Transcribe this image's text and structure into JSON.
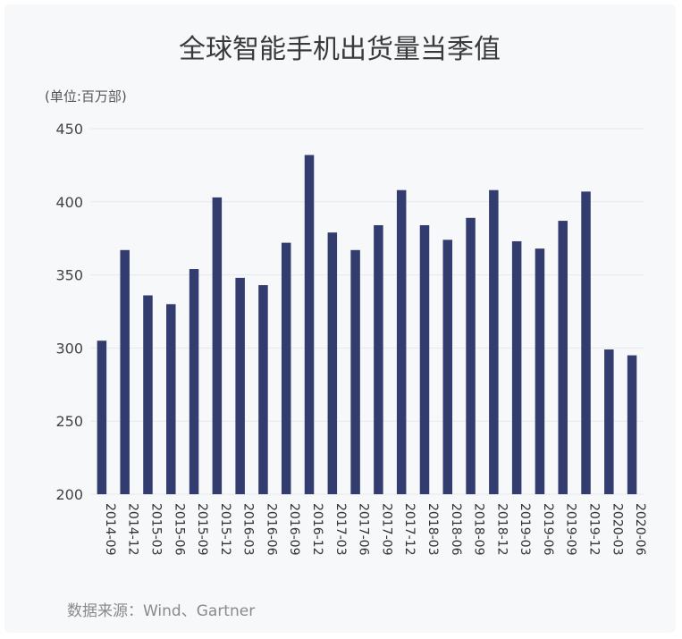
{
  "chart_data": {
    "type": "bar",
    "title": "全球智能手机出货量当季值",
    "unit": "(单位:百万部)",
    "source": "数据来源：Wind、Gartner",
    "ylim": [
      200,
      450
    ],
    "yticks": [
      "200",
      "250",
      "300",
      "350",
      "400",
      "450"
    ],
    "categories": [
      "2014-09",
      "2014-12",
      "2015-03",
      "2015-06",
      "2015-09",
      "2015-12",
      "2016-03",
      "2016-06",
      "2016-09",
      "2016-12",
      "2017-03",
      "2017-06",
      "2017-09",
      "2017-12",
      "2018-03",
      "2018-06",
      "2018-09",
      "2018-12",
      "2019-03",
      "2019-06",
      "2019-09",
      "2019-12",
      "2020-03",
      "2020-06"
    ],
    "values": [
      305,
      367,
      336,
      330,
      354,
      403,
      348,
      343,
      372,
      432,
      379,
      367,
      384,
      408,
      384,
      374,
      389,
      408,
      373,
      368,
      387,
      407,
      299,
      295
    ],
    "colors": {
      "bar": "#323c6e",
      "grid": "#e6e8ec",
      "background": "#f7f8fa"
    },
    "grid": true
  }
}
